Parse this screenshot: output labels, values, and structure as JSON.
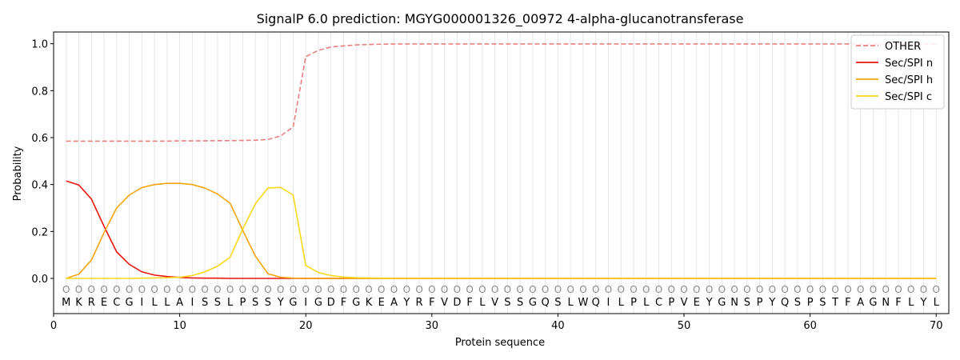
{
  "chart_data": {
    "type": "line",
    "title": "SignalP 6.0 prediction: MGYG000001326_00972 4-alpha-glucanotransferase",
    "xlabel": "Protein sequence",
    "ylabel": "Probability",
    "xlim": [
      0,
      71
    ],
    "ylim": [
      -0.15,
      1.05
    ],
    "xticks": [
      0,
      10,
      20,
      30,
      40,
      50,
      60,
      70
    ],
    "yticks": [
      0.0,
      0.2,
      0.4,
      0.6,
      0.8,
      1.0
    ],
    "ytick_labels": [
      "0.0",
      "0.2",
      "0.4",
      "0.6",
      "0.8",
      "1.0"
    ],
    "grid": "vertical lines at each residue",
    "legend_position": "top-right",
    "sequence": [
      "M",
      "K",
      "R",
      "E",
      "C",
      "G",
      "I",
      "L",
      "L",
      "A",
      "I",
      "S",
      "S",
      "L",
      "P",
      "S",
      "S",
      "Y",
      "G",
      "I",
      "G",
      "D",
      "F",
      "G",
      "K",
      "E",
      "A",
      "Y",
      "R",
      "F",
      "V",
      "D",
      "F",
      "L",
      "V",
      "S",
      "S",
      "G",
      "Q",
      "S",
      "L",
      "W",
      "Q",
      "I",
      "L",
      "P",
      "L",
      "C",
      "P",
      "V",
      "E",
      "Y",
      "G",
      "N",
      "S",
      "P",
      "Y",
      "Q",
      "S",
      "P",
      "S",
      "T",
      "F",
      "A",
      "G",
      "N",
      "F",
      "L",
      "Y",
      "L"
    ],
    "region_marker": "O",
    "series": [
      {
        "name": "OTHER",
        "color": "#e88080",
        "dash": true,
        "values": [
          0.585,
          0.585,
          0.585,
          0.585,
          0.585,
          0.585,
          0.585,
          0.585,
          0.585,
          0.586,
          0.586,
          0.586,
          0.587,
          0.587,
          0.588,
          0.589,
          0.592,
          0.607,
          0.645,
          0.945,
          0.972,
          0.986,
          0.991,
          0.995,
          0.997,
          0.998,
          0.999,
          0.999,
          0.999,
          0.999,
          0.999,
          0.999,
          0.999,
          0.999,
          0.999,
          0.999,
          0.999,
          0.999,
          0.999,
          0.999,
          0.999,
          0.999,
          0.999,
          0.999,
          0.999,
          0.999,
          0.999,
          0.999,
          0.999,
          0.999,
          0.999,
          0.999,
          0.999,
          0.999,
          0.999,
          0.999,
          0.999,
          0.999,
          0.999,
          0.999,
          0.999,
          0.999,
          0.999,
          0.999,
          0.999,
          0.999,
          0.999,
          0.999,
          0.999,
          0.999
        ]
      },
      {
        "name": "Sec/SPI n",
        "color": "#e8150e",
        "dash": false,
        "values": [
          0.415,
          0.398,
          0.338,
          0.222,
          0.113,
          0.06,
          0.028,
          0.014,
          0.008,
          0.004,
          0.002,
          0.001,
          0.001,
          0.0,
          0.0,
          0.0,
          0.0,
          0.0,
          0.0,
          0.0,
          0.0,
          0.0,
          0.0,
          0.0,
          0.0,
          0.0,
          0.0,
          0.0,
          0.0,
          0.0,
          0.0,
          0.0,
          0.0,
          0.0,
          0.0,
          0.0,
          0.0,
          0.0,
          0.0,
          0.0,
          0.0,
          0.0,
          0.0,
          0.0,
          0.0,
          0.0,
          0.0,
          0.0,
          0.0,
          0.0,
          0.0,
          0.0,
          0.0,
          0.0,
          0.0,
          0.0,
          0.0,
          0.0,
          0.0,
          0.0,
          0.0,
          0.0,
          0.0,
          0.0,
          0.0,
          0.0,
          0.0,
          0.0,
          0.0,
          0.0
        ]
      },
      {
        "name": "Sec/SPI h",
        "color": "#f5a50a",
        "dash": false,
        "values": [
          0.0,
          0.018,
          0.078,
          0.195,
          0.3,
          0.355,
          0.387,
          0.4,
          0.405,
          0.405,
          0.4,
          0.385,
          0.36,
          0.32,
          0.205,
          0.095,
          0.02,
          0.005,
          0.001,
          0.0,
          0.0,
          0.0,
          0.0,
          0.0,
          0.0,
          0.0,
          0.0,
          0.0,
          0.0,
          0.0,
          0.0,
          0.0,
          0.0,
          0.0,
          0.0,
          0.0,
          0.0,
          0.0,
          0.0,
          0.0,
          0.0,
          0.0,
          0.0,
          0.0,
          0.0,
          0.0,
          0.0,
          0.0,
          0.0,
          0.0,
          0.0,
          0.0,
          0.0,
          0.0,
          0.0,
          0.0,
          0.0,
          0.0,
          0.0,
          0.0,
          0.0,
          0.0,
          0.0,
          0.0,
          0.0,
          0.0,
          0.0,
          0.0,
          0.0,
          0.0
        ]
      },
      {
        "name": "Sec/SPI c",
        "color": "#f8d81a",
        "dash": false,
        "values": [
          0.0,
          0.0,
          0.0,
          0.0,
          0.0,
          0.0,
          0.001,
          0.002,
          0.003,
          0.005,
          0.012,
          0.028,
          0.052,
          0.09,
          0.21,
          0.318,
          0.385,
          0.388,
          0.355,
          0.055,
          0.025,
          0.012,
          0.006,
          0.003,
          0.002,
          0.001,
          0.0,
          0.0,
          0.0,
          0.0,
          0.0,
          0.0,
          0.0,
          0.0,
          0.0,
          0.0,
          0.0,
          0.0,
          0.0,
          0.0,
          0.0,
          0.0,
          0.0,
          0.0,
          0.0,
          0.0,
          0.0,
          0.0,
          0.0,
          0.0,
          0.0,
          0.0,
          0.0,
          0.0,
          0.0,
          0.0,
          0.0,
          0.0,
          0.0,
          0.0,
          0.0,
          0.0,
          0.0,
          0.0,
          0.0,
          0.0,
          0.0,
          0.0,
          0.0,
          0.0
        ]
      }
    ]
  }
}
